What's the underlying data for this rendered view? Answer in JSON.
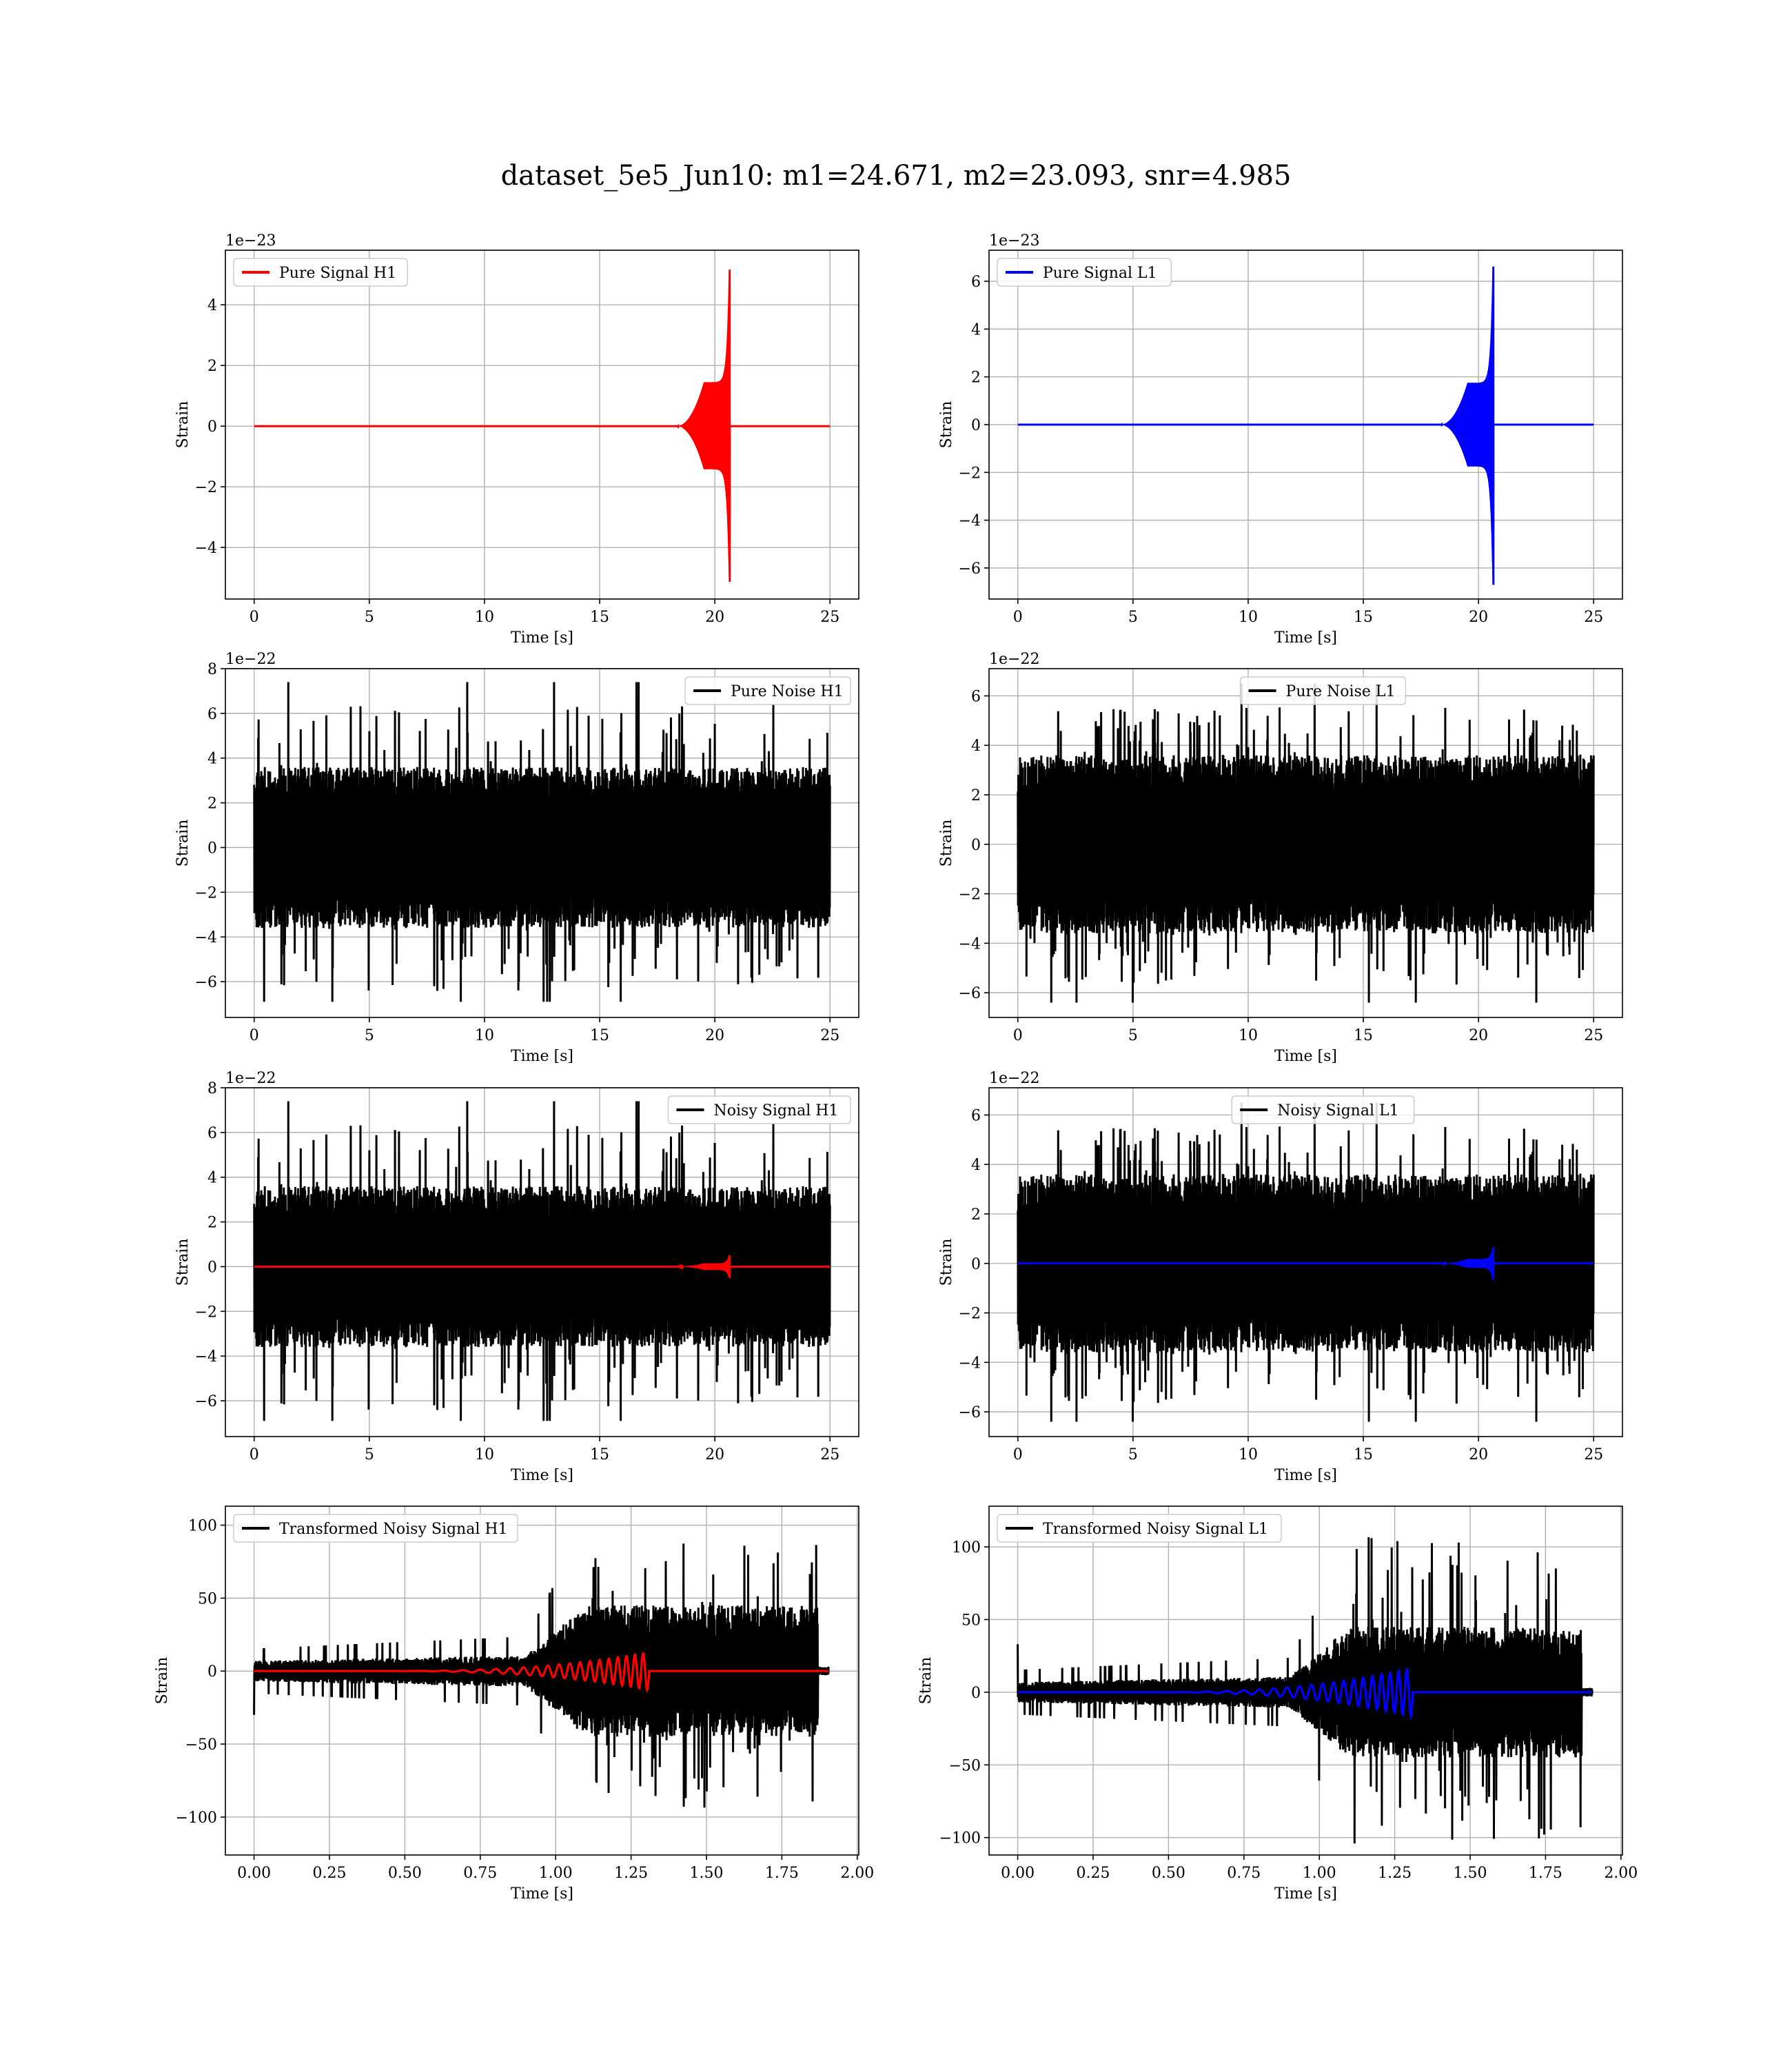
{
  "figure": {
    "title": "dataset_5e5_Jun10: m1=24.671, m2=23.093, snr=4.985"
  },
  "colors": {
    "h1": "#ff0000",
    "l1": "#0000ff",
    "noise": "#000000",
    "grid": "#b0b0b0"
  },
  "chart_data": [
    {
      "id": "p1",
      "type": "line",
      "xlabel": "Time [s]",
      "ylabel": "Strain",
      "offset_label": "1e−23",
      "xlim": [
        -1.25,
        26.25
      ],
      "ylim": [
        -5.7,
        5.8
      ],
      "xticks": [
        0,
        5,
        10,
        15,
        20,
        25
      ],
      "xtick_labels": [
        "0",
        "5",
        "10",
        "15",
        "20",
        "25"
      ],
      "yticks": [
        -4,
        -2,
        0,
        2,
        4
      ],
      "ytick_labels": [
        "−4",
        "−2",
        "0",
        "2",
        "4"
      ],
      "legend_loc": "upper-left",
      "grid": true,
      "series": [
        {
          "name": "Pure Signal H1",
          "color": "#ff0000",
          "kind": "chirp",
          "x_start": 0,
          "x_end": 25,
          "t_merge": 20.65,
          "peak": 5.3,
          "trough": -5.2,
          "plateau": 1.45
        }
      ]
    },
    {
      "id": "p2",
      "type": "line",
      "xlabel": "Time [s]",
      "ylabel": "Strain",
      "offset_label": "1e−23",
      "xlim": [
        -1.25,
        26.25
      ],
      "ylim": [
        -7.3,
        7.3
      ],
      "xticks": [
        0,
        5,
        10,
        15,
        20,
        25
      ],
      "xtick_labels": [
        "0",
        "5",
        "10",
        "15",
        "20",
        "25"
      ],
      "yticks": [
        -6,
        -4,
        -2,
        0,
        2,
        4,
        6
      ],
      "ytick_labels": [
        "−6",
        "−4",
        "−2",
        "0",
        "2",
        "4",
        "6"
      ],
      "legend_loc": "upper-left",
      "grid": true,
      "series": [
        {
          "name": "Pure Signal L1",
          "color": "#0000ff",
          "kind": "chirp",
          "x_start": 0,
          "x_end": 25,
          "t_merge": 20.65,
          "peak": 6.7,
          "trough": -6.8,
          "plateau": 1.75
        }
      ]
    },
    {
      "id": "p3",
      "type": "line",
      "xlabel": "Time [s]",
      "ylabel": "Strain",
      "offset_label": "1e−22",
      "xlim": [
        -1.25,
        26.25
      ],
      "ylim": [
        -7.6,
        8.0
      ],
      "xticks": [
        0,
        5,
        10,
        15,
        20,
        25
      ],
      "xtick_labels": [
        "0",
        "5",
        "10",
        "15",
        "20",
        "25"
      ],
      "yticks": [
        -6,
        -4,
        -2,
        0,
        2,
        4,
        6,
        8
      ],
      "ytick_labels": [
        "−6",
        "−4",
        "−2",
        "0",
        "2",
        "4",
        "6",
        "8"
      ],
      "legend_loc": "upper-right",
      "grid": true,
      "series": [
        {
          "name": "Pure Noise H1",
          "color": "#000000",
          "kind": "noise",
          "x_start": 0,
          "x_end": 25,
          "core": 3.6,
          "spike": 6.5,
          "max": 7.4,
          "min": -6.9,
          "seed": 11
        }
      ]
    },
    {
      "id": "p4",
      "type": "line",
      "xlabel": "Time [s]",
      "ylabel": "Strain",
      "offset_label": "1e−22",
      "xlim": [
        -1.25,
        26.25
      ],
      "ylim": [
        -7.0,
        7.1
      ],
      "xticks": [
        0,
        5,
        10,
        15,
        20,
        25
      ],
      "xtick_labels": [
        "0",
        "5",
        "10",
        "15",
        "20",
        "25"
      ],
      "yticks": [
        -6,
        -4,
        -2,
        0,
        2,
        4,
        6
      ],
      "ytick_labels": [
        "−6",
        "−4",
        "−2",
        "0",
        "2",
        "4",
        "6"
      ],
      "legend_loc": "upper-center",
      "grid": true,
      "series": [
        {
          "name": "Pure Noise L1",
          "color": "#000000",
          "kind": "noise",
          "x_start": 0,
          "x_end": 25,
          "core": 3.6,
          "spike": 5.7,
          "max": 6.5,
          "min": -6.4,
          "seed": 23
        }
      ]
    },
    {
      "id": "p5",
      "type": "line",
      "xlabel": "Time [s]",
      "ylabel": "Strain",
      "offset_label": "1e−22",
      "xlim": [
        -1.25,
        26.25
      ],
      "ylim": [
        -7.6,
        8.0
      ],
      "xticks": [
        0,
        5,
        10,
        15,
        20,
        25
      ],
      "xtick_labels": [
        "0",
        "5",
        "10",
        "15",
        "20",
        "25"
      ],
      "yticks": [
        -6,
        -4,
        -2,
        0,
        2,
        4,
        6,
        8
      ],
      "ytick_labels": [
        "−6",
        "−4",
        "−2",
        "0",
        "2",
        "4",
        "6",
        "8"
      ],
      "legend_loc": "upper-right",
      "grid": true,
      "series": [
        {
          "name": "Noisy Signal H1",
          "color": "#000000",
          "kind": "noise",
          "x_start": 0,
          "x_end": 25,
          "core": 3.6,
          "spike": 6.5,
          "max": 7.4,
          "min": -6.9,
          "seed": 11
        },
        {
          "color": "#ff0000",
          "kind": "chirp",
          "x_start": 0,
          "x_end": 25,
          "t_merge": 20.65,
          "peak": 0.53,
          "trough": -0.52,
          "plateau": 0.15
        }
      ]
    },
    {
      "id": "p6",
      "type": "line",
      "xlabel": "Time [s]",
      "ylabel": "Strain",
      "offset_label": "1e−22",
      "xlim": [
        -1.25,
        26.25
      ],
      "ylim": [
        -7.0,
        7.1
      ],
      "xticks": [
        0,
        5,
        10,
        15,
        20,
        25
      ],
      "xtick_labels": [
        "0",
        "5",
        "10",
        "15",
        "20",
        "25"
      ],
      "yticks": [
        -6,
        -4,
        -2,
        0,
        2,
        4,
        6
      ],
      "ytick_labels": [
        "−6",
        "−4",
        "−2",
        "0",
        "2",
        "4",
        "6"
      ],
      "legend_loc": "upper-center",
      "grid": true,
      "series": [
        {
          "name": "Noisy Signal L1",
          "color": "#000000",
          "kind": "noise",
          "x_start": 0,
          "x_end": 25,
          "core": 3.6,
          "spike": 5.7,
          "max": 6.5,
          "min": -6.4,
          "seed": 23
        },
        {
          "color": "#0000ff",
          "kind": "chirp",
          "x_start": 0,
          "x_end": 25,
          "t_merge": 20.65,
          "peak": 0.67,
          "trough": -0.68,
          "plateau": 0.18
        }
      ]
    },
    {
      "id": "p7",
      "type": "line",
      "xlabel": "Time [s]",
      "ylabel": "Strain",
      "offset_label": "",
      "xlim": [
        -0.095,
        2.005
      ],
      "ylim": [
        -126,
        113
      ],
      "xticks": [
        0,
        0.25,
        0.5,
        0.75,
        1.0,
        1.25,
        1.5,
        1.75,
        2.0
      ],
      "xtick_labels": [
        "0.00",
        "0.25",
        "0.50",
        "0.75",
        "1.00",
        "1.25",
        "1.50",
        "1.75",
        "2.00"
      ],
      "yticks": [
        -100,
        -50,
        0,
        50,
        100
      ],
      "ytick_labels": [
        "−100",
        "−50",
        "0",
        "50",
        "100"
      ],
      "legend_loc": "upper-left",
      "grid": true,
      "series": [
        {
          "name": "Transformed Noisy Signal H1",
          "color": "#000000",
          "kind": "whitened",
          "x_start": 0,
          "x_end": 1.905,
          "low": 7,
          "high": 45,
          "spike": 95,
          "seed": 37,
          "first": -30
        },
        {
          "color": "#ff0000",
          "kind": "ringup",
          "x_start": 0,
          "x_end": 1.905,
          "t_merge": 1.31,
          "peak": 13
        }
      ]
    },
    {
      "id": "p8",
      "type": "line",
      "xlabel": "Time [s]",
      "ylabel": "Strain",
      "offset_label": "",
      "xlim": [
        -0.095,
        2.005
      ],
      "ylim": [
        -112,
        128
      ],
      "xticks": [
        0,
        0.25,
        0.5,
        0.75,
        1.0,
        1.25,
        1.5,
        1.75,
        2.0
      ],
      "xtick_labels": [
        "0.00",
        "0.25",
        "0.50",
        "0.75",
        "1.00",
        "1.25",
        "1.50",
        "1.75",
        "2.00"
      ],
      "yticks": [
        -100,
        -50,
        0,
        50,
        100
      ],
      "ytick_labels": [
        "−100",
        "−50",
        "0",
        "50",
        "100"
      ],
      "legend_loc": "upper-left",
      "grid": true,
      "series": [
        {
          "name": "Transformed Noisy Signal L1",
          "color": "#000000",
          "kind": "whitened",
          "x_start": 0,
          "x_end": 1.905,
          "low": 7,
          "high": 45,
          "spike": 110,
          "seed": 53,
          "first": 33
        },
        {
          "color": "#0000ff",
          "kind": "ringup",
          "x_start": 0,
          "x_end": 1.905,
          "t_merge": 1.31,
          "peak": 17
        }
      ]
    }
  ]
}
